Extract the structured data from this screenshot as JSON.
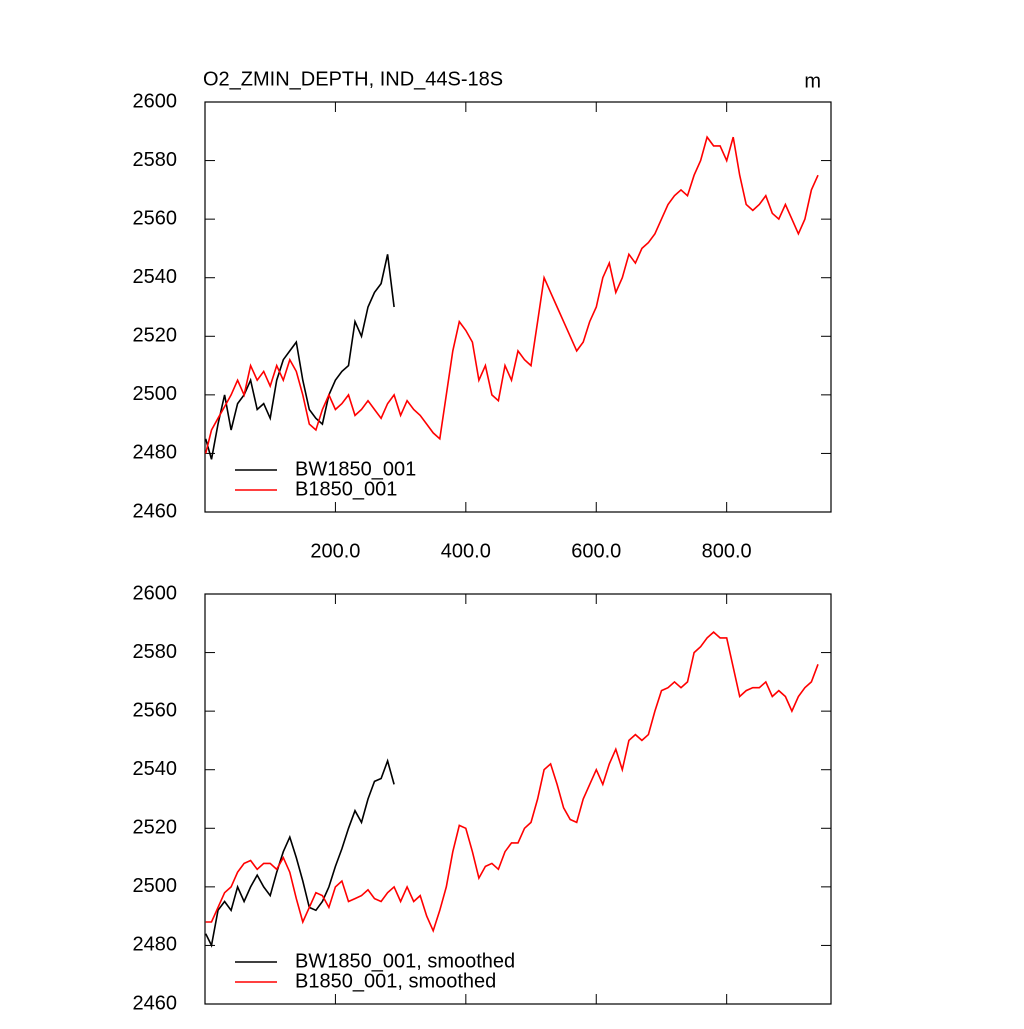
{
  "chart_data": [
    {
      "type": "line",
      "title": "O2_ZMIN_DEPTH, IND_44S-18S",
      "units": "m",
      "xlim": [
        0,
        960
      ],
      "ylim": [
        2460,
        2600
      ],
      "xticks": [
        {
          "value": 200,
          "label": "200.0"
        },
        {
          "value": 400,
          "label": "400.0"
        },
        {
          "value": 600,
          "label": "600.0"
        },
        {
          "value": 800,
          "label": "800.0"
        }
      ],
      "yticks": [
        2460,
        2480,
        2500,
        2520,
        2540,
        2560,
        2580,
        2600
      ],
      "legend": "lower left",
      "series": [
        {
          "name": "BW1850_001",
          "color": "#000000",
          "x": [
            1,
            10,
            20,
            30,
            40,
            50,
            60,
            70,
            80,
            90,
            100,
            110,
            120,
            130,
            140,
            150,
            160,
            170,
            180,
            190,
            200,
            210,
            220,
            230,
            240,
            250,
            260,
            270,
            280,
            290
          ],
          "values": [
            2485,
            2478,
            2490,
            2500,
            2488,
            2497,
            2500,
            2505,
            2495,
            2497,
            2492,
            2505,
            2512,
            2515,
            2518,
            2505,
            2495,
            2492,
            2490,
            2500,
            2505,
            2508,
            2510,
            2525,
            2520,
            2530,
            2535,
            2538,
            2548,
            2530
          ]
        },
        {
          "name": "B1850_001",
          "color": "#ff0000",
          "x": [
            1,
            10,
            20,
            30,
            40,
            50,
            60,
            70,
            80,
            90,
            100,
            110,
            120,
            130,
            140,
            150,
            160,
            170,
            180,
            190,
            200,
            210,
            220,
            230,
            240,
            250,
            260,
            270,
            280,
            290,
            300,
            310,
            320,
            330,
            340,
            350,
            360,
            370,
            380,
            390,
            400,
            410,
            420,
            430,
            440,
            450,
            460,
            470,
            480,
            490,
            500,
            510,
            520,
            530,
            540,
            550,
            560,
            570,
            580,
            590,
            600,
            610,
            620,
            630,
            640,
            650,
            660,
            670,
            680,
            690,
            700,
            710,
            720,
            730,
            740,
            750,
            760,
            770,
            780,
            790,
            800,
            810,
            820,
            830,
            840,
            850,
            860,
            870,
            880,
            890,
            900,
            910,
            920,
            930,
            940
          ],
          "values": [
            2480,
            2488,
            2492,
            2496,
            2500,
            2505,
            2500,
            2510,
            2505,
            2508,
            2503,
            2510,
            2505,
            2512,
            2508,
            2500,
            2490,
            2488,
            2495,
            2500,
            2495,
            2497,
            2500,
            2493,
            2495,
            2498,
            2495,
            2492,
            2497,
            2500,
            2493,
            2498,
            2495,
            2493,
            2490,
            2487,
            2485,
            2500,
            2515,
            2525,
            2522,
            2518,
            2505,
            2510,
            2500,
            2498,
            2510,
            2505,
            2515,
            2512,
            2510,
            2525,
            2540,
            2535,
            2530,
            2525,
            2520,
            2515,
            2518,
            2525,
            2530,
            2540,
            2545,
            2535,
            2540,
            2548,
            2545,
            2550,
            2552,
            2555,
            2560,
            2565,
            2568,
            2570,
            2568,
            2575,
            2580,
            2588,
            2585,
            2585,
            2580,
            2588,
            2575,
            2565,
            2563,
            2565,
            2568,
            2562,
            2560,
            2565,
            2560,
            2555,
            2560,
            2570,
            2575
          ]
        }
      ]
    },
    {
      "type": "line",
      "xlim": [
        0,
        960
      ],
      "ylim": [
        2460,
        2600
      ],
      "xticks": [
        200,
        400,
        600,
        800
      ],
      "xtick_labels": false,
      "yticks": [
        2460,
        2480,
        2500,
        2520,
        2540,
        2560,
        2580,
        2600
      ],
      "legend": "lower left",
      "series": [
        {
          "name": "BW1850_001, smoothed",
          "color": "#000000",
          "x": [
            1,
            10,
            20,
            30,
            40,
            50,
            60,
            70,
            80,
            90,
            100,
            110,
            120,
            130,
            140,
            150,
            160,
            170,
            180,
            190,
            200,
            210,
            220,
            230,
            240,
            250,
            260,
            270,
            280,
            290
          ],
          "values": [
            2484,
            2480,
            2492,
            2495,
            2492,
            2500,
            2495,
            2500,
            2504,
            2500,
            2497,
            2505,
            2512,
            2517,
            2510,
            2502,
            2493,
            2492,
            2495,
            2500,
            2507,
            2513,
            2520,
            2526,
            2522,
            2530,
            2536,
            2537,
            2543,
            2535
          ]
        },
        {
          "name": "B1850_001, smoothed",
          "color": "#ff0000",
          "x": [
            1,
            10,
            20,
            30,
            40,
            50,
            60,
            70,
            80,
            90,
            100,
            110,
            120,
            130,
            140,
            150,
            160,
            170,
            180,
            190,
            200,
            210,
            220,
            230,
            240,
            250,
            260,
            270,
            280,
            290,
            300,
            310,
            320,
            330,
            340,
            350,
            360,
            370,
            380,
            390,
            400,
            410,
            420,
            430,
            440,
            450,
            460,
            470,
            480,
            490,
            500,
            510,
            520,
            530,
            540,
            550,
            560,
            570,
            580,
            590,
            600,
            610,
            620,
            630,
            640,
            650,
            660,
            670,
            680,
            690,
            700,
            710,
            720,
            730,
            740,
            750,
            760,
            770,
            780,
            790,
            800,
            810,
            820,
            830,
            840,
            850,
            860,
            870,
            880,
            890,
            900,
            910,
            920,
            930,
            940
          ],
          "values": [
            2488,
            2488,
            2493,
            2498,
            2500,
            2505,
            2508,
            2509,
            2506,
            2508,
            2508,
            2506,
            2510,
            2505,
            2496,
            2488,
            2493,
            2498,
            2497,
            2493,
            2500,
            2502,
            2495,
            2496,
            2497,
            2499,
            2496,
            2495,
            2498,
            2500,
            2495,
            2500,
            2495,
            2497,
            2490,
            2485,
            2492,
            2500,
            2512,
            2521,
            2520,
            2512,
            2503,
            2507,
            2508,
            2506,
            2512,
            2515,
            2515,
            2520,
            2522,
            2530,
            2540,
            2542,
            2535,
            2527,
            2523,
            2522,
            2530,
            2535,
            2540,
            2535,
            2542,
            2547,
            2540,
            2550,
            2552,
            2550,
            2552,
            2560,
            2567,
            2568,
            2570,
            2568,
            2570,
            2580,
            2582,
            2585,
            2587,
            2585,
            2585,
            2575,
            2565,
            2567,
            2568,
            2568,
            2570,
            2565,
            2567,
            2565,
            2560,
            2565,
            2568,
            2570,
            2576
          ]
        }
      ]
    }
  ]
}
